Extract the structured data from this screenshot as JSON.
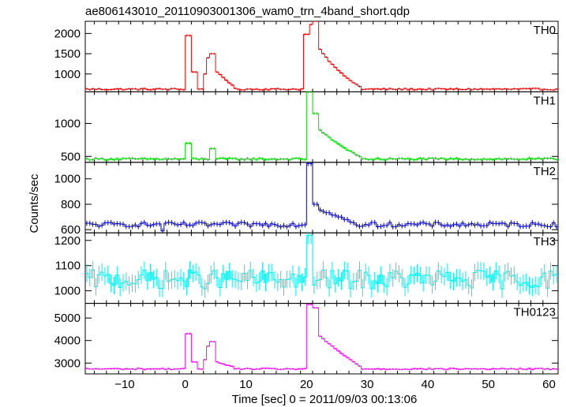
{
  "title": "ae806143010_20110903001306_wam0_trn_4band_short.qdp",
  "xlabel": "Time [sec] 0 = 2011/09/03 00:13:06",
  "ylabel": "Counts/sec",
  "chart_data": {
    "type": "line",
    "style": "histogram-step with error bars",
    "title": "ae806143010_20110903001306_wam0_trn_4band_short.qdp",
    "xlabel": "Time [sec] 0 = 2011/09/03 00:13:06",
    "ylabel": "Counts/sec",
    "xlim": [
      -16.5,
      61.5
    ],
    "x_ticks": [
      -10,
      0,
      10,
      20,
      30,
      40,
      50,
      60
    ],
    "bin_width_sec": 0.5,
    "panels": [
      {
        "name": "TH0",
        "color": "#ff0000",
        "ylim": [
          560,
          2300
        ],
        "y_ticks": [
          1000,
          1500,
          2000
        ],
        "baseline": 625,
        "noise": 20,
        "err": 25,
        "features": [
          {
            "type": "pulse",
            "t0": 0.0,
            "t1": 1.0,
            "peak": 1950
          },
          {
            "type": "shoulder",
            "t0": 1.0,
            "t1": 2.0,
            "level": 1050
          },
          {
            "type": "shoulder",
            "t0": 3.0,
            "t1": 3.5,
            "level": 1000
          },
          {
            "type": "pulse",
            "t0": 3.5,
            "t1": 4.0,
            "peak": 1400
          },
          {
            "type": "pulse",
            "t0": 4.0,
            "t1": 5.0,
            "peak": 1500
          },
          {
            "type": "decay",
            "t0": 5.0,
            "t1": 8.0,
            "from": 1050,
            "to": 680
          },
          {
            "type": "pulse",
            "t0": 19.5,
            "t1": 20.5,
            "peak": 1980
          },
          {
            "type": "pulse",
            "t0": 20.5,
            "t1": 21.0,
            "peak": 2220
          },
          {
            "type": "pulse",
            "t0": 21.0,
            "t1": 22.0,
            "peak": 2300
          },
          {
            "type": "decay",
            "t0": 22.0,
            "t1": 29.0,
            "from": 1600,
            "to": 650
          }
        ]
      },
      {
        "name": "TH1",
        "color": "#00dd00",
        "ylim": [
          410,
          1480
        ],
        "y_ticks": [
          500,
          1000
        ],
        "baseline": 460,
        "noise": 15,
        "err": 20,
        "features": [
          {
            "type": "pulse",
            "t0": 0.0,
            "t1": 1.0,
            "peak": 700
          },
          {
            "type": "pulse",
            "t0": 4.0,
            "t1": 5.0,
            "peak": 620
          },
          {
            "type": "pulse",
            "t0": 20.0,
            "t1": 21.0,
            "peak": 1480
          },
          {
            "type": "pulse",
            "t0": 21.0,
            "t1": 22.0,
            "peak": 1150
          },
          {
            "type": "decay",
            "t0": 22.0,
            "t1": 29.0,
            "from": 900,
            "to": 480
          }
        ]
      },
      {
        "name": "TH2",
        "color": "#0000cc",
        "ylim": [
          575,
          1130
        ],
        "y_ticks": [
          600,
          800,
          1000
        ],
        "baseline": 640,
        "noise": 18,
        "err": 20,
        "features": [
          {
            "type": "pulse",
            "t0": -4.0,
            "t1": -3.5,
            "peak": 590
          },
          {
            "type": "pulse",
            "t0": 20.0,
            "t1": 21.0,
            "peak": 1120
          },
          {
            "type": "pulse",
            "t0": 21.0,
            "t1": 22.0,
            "peak": 800
          },
          {
            "type": "decay",
            "t0": 22.0,
            "t1": 28.0,
            "from": 760,
            "to": 650
          }
        ]
      },
      {
        "name": "TH3",
        "color": "#00eeee",
        "ylim": [
          950,
          1230
        ],
        "y_ticks": [
          1000,
          1100,
          1200
        ],
        "baseline": 1045,
        "noise": 38,
        "err": 35,
        "features": [
          {
            "type": "pulse",
            "t0": 20.0,
            "t1": 21.0,
            "peak": 1220
          }
        ]
      },
      {
        "name": "TH0123",
        "color": "#ff00ff",
        "ylim": [
          2520,
          5650
        ],
        "y_ticks": [
          3000,
          4000,
          5000
        ],
        "baseline": 2740,
        "noise": 30,
        "err": 40,
        "features": [
          {
            "type": "pulse",
            "t0": 0.0,
            "t1": 1.0,
            "peak": 4300
          },
          {
            "type": "shoulder",
            "t0": 1.0,
            "t1": 2.0,
            "level": 3050
          },
          {
            "type": "shoulder",
            "t0": 3.0,
            "t1": 3.5,
            "level": 3150
          },
          {
            "type": "pulse",
            "t0": 3.5,
            "t1": 4.0,
            "peak": 3750
          },
          {
            "type": "pulse",
            "t0": 4.0,
            "t1": 5.0,
            "peak": 3950
          },
          {
            "type": "decay",
            "t0": 5.0,
            "t1": 8.0,
            "from": 3050,
            "to": 2800
          },
          {
            "type": "pulse",
            "t0": 20.0,
            "t1": 21.0,
            "peak": 5600
          },
          {
            "type": "pulse",
            "t0": 21.0,
            "t1": 22.0,
            "peak": 5450
          },
          {
            "type": "decay",
            "t0": 22.0,
            "t1": 29.0,
            "from": 4200,
            "to": 2800
          }
        ]
      }
    ]
  }
}
